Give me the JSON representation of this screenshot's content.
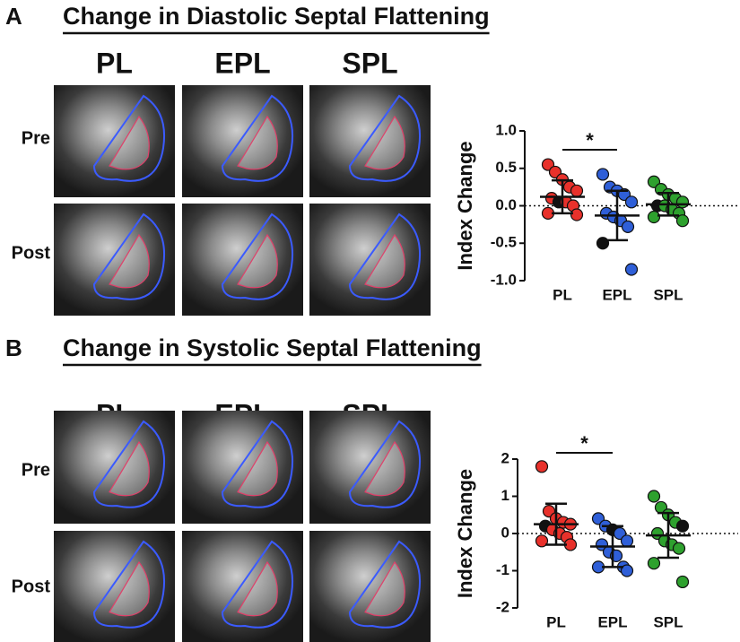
{
  "chart_data": [
    {
      "type": "strip",
      "panel": "A",
      "title": "Change in Diastolic Septal Flattening",
      "image_columns": [
        "PL",
        "EPL",
        "SPL"
      ],
      "image_rows": [
        "Pre",
        "Post"
      ],
      "ylabel": "Index Change",
      "categories": [
        "PL",
        "EPL",
        "SPL"
      ],
      "ylim": [
        -1,
        1
      ],
      "yticks": [
        {
          "value": -1,
          "label": "-1.0"
        },
        -0.5,
        {
          "value": 0,
          "label": "0.0"
        },
        0.5,
        {
          "value": 1,
          "label": "1.0"
        }
      ],
      "zero_line": true,
      "groups": [
        {
          "color": "#e8312b",
          "values": [
            0.55,
            0.45,
            0.35,
            0.25,
            0.2,
            0.1,
            0.05,
            0.05,
            0.0,
            -0.1,
            -0.12
          ],
          "point_colors": [
            "#e8312b",
            "#e8312b",
            "#e8312b",
            "#e8312b",
            "#e8312b",
            "#e8312b",
            "#111111",
            "#e8312b",
            "#e8312b",
            "#e8312b",
            "#e8312b"
          ],
          "mean": 0.12,
          "sd": 0.22
        },
        {
          "color": "#2f5fd8",
          "values": [
            0.42,
            0.25,
            0.2,
            0.15,
            0.05,
            -0.1,
            -0.15,
            -0.2,
            -0.28,
            -0.5,
            -0.85
          ],
          "point_colors": [
            "#2f5fd8",
            "#2f5fd8",
            "#2f5fd8",
            "#2f5fd8",
            "#2f5fd8",
            "#2f5fd8",
            "#2f5fd8",
            "#2f5fd8",
            "#2f5fd8",
            "#111111",
            "#2f5fd8"
          ],
          "mean": -0.13,
          "sd": 0.33
        },
        {
          "color": "#2ea12e",
          "values": [
            0.32,
            0.22,
            0.15,
            0.1,
            0.05,
            0.0,
            0.0,
            -0.05,
            -0.1,
            -0.15,
            -0.2
          ],
          "point_colors": [
            "#2ea12e",
            "#2ea12e",
            "#2ea12e",
            "#2ea12e",
            "#2ea12e",
            "#111111",
            "#2ea12e",
            "#2ea12e",
            "#2ea12e",
            "#2ea12e",
            "#2ea12e"
          ],
          "mean": 0.02,
          "sd": 0.15
        }
      ],
      "annotation": {
        "text": "*",
        "from": 0,
        "to": 1
      }
    },
    {
      "type": "strip",
      "panel": "B",
      "title": "Change in Systolic Septal Flattening",
      "image_columns": [
        "PL",
        "EPL",
        "SPL"
      ],
      "image_rows": [
        "Pre",
        "Post"
      ],
      "ylabel": "Index Change",
      "categories": [
        "PL",
        "EPL",
        "SPL"
      ],
      "ylim": [
        -2,
        2
      ],
      "yticks": [
        -2,
        -1,
        0,
        1,
        2
      ],
      "zero_line": true,
      "groups": [
        {
          "color": "#e8312b",
          "values": [
            1.8,
            0.6,
            0.4,
            0.3,
            0.25,
            0.2,
            0.1,
            0.0,
            -0.1,
            -0.2,
            -0.3
          ],
          "point_colors": [
            "#e8312b",
            "#e8312b",
            "#e8312b",
            "#e8312b",
            "#e8312b",
            "#111111",
            "#e8312b",
            "#e8312b",
            "#e8312b",
            "#e8312b",
            "#e8312b"
          ],
          "mean": 0.25,
          "sd": 0.55
        },
        {
          "color": "#2f5fd8",
          "values": [
            0.4,
            0.2,
            0.1,
            0.0,
            -0.2,
            -0.3,
            -0.5,
            -0.6,
            -0.9,
            -0.9,
            -1.0
          ],
          "point_colors": [
            "#2f5fd8",
            "#2f5fd8",
            "#111111",
            "#2f5fd8",
            "#2f5fd8",
            "#2f5fd8",
            "#2f5fd8",
            "#2f5fd8",
            "#2f5fd8",
            "#2f5fd8",
            "#2f5fd8"
          ],
          "mean": -0.35,
          "sd": 0.55
        },
        {
          "color": "#2ea12e",
          "values": [
            1.0,
            0.7,
            0.5,
            0.3,
            0.2,
            0.0,
            -0.2,
            -0.3,
            -0.4,
            -0.8,
            -1.3
          ],
          "point_colors": [
            "#2ea12e",
            "#2ea12e",
            "#2ea12e",
            "#2ea12e",
            "#111111",
            "#2ea12e",
            "#2ea12e",
            "#2ea12e",
            "#2ea12e",
            "#2ea12e",
            "#2ea12e"
          ],
          "mean": -0.05,
          "sd": 0.6
        }
      ],
      "annotation": {
        "text": "*",
        "from": 0,
        "to": 1
      }
    }
  ]
}
